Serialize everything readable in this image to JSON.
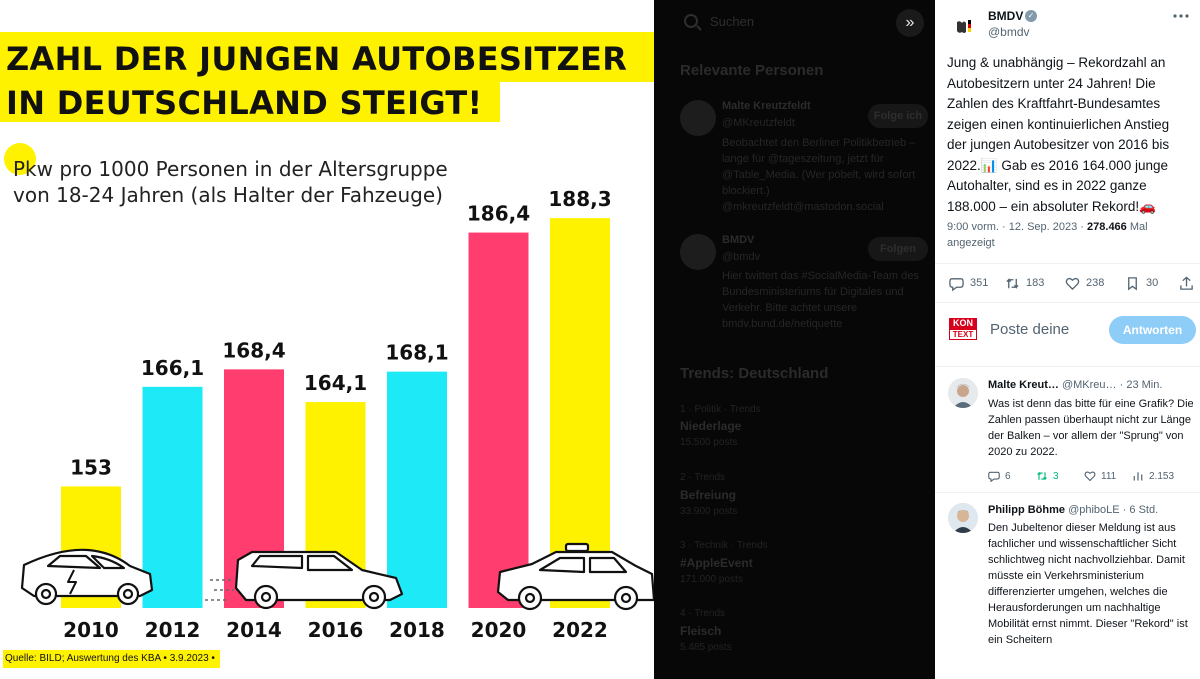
{
  "infographic": {
    "headline_line1": "ZAHL DER JUNGEN AUTOBESITZER",
    "headline_line2": "IN DEUTSCHLAND STEIGT!",
    "subtitle_line1": "Pkw pro 1000 Personen in der Altersgruppe",
    "subtitle_line2": "von 18-24 Jahren (als Halter der Fahzeuge)",
    "source": "Quelle: BILD; Auswertung des KBA • 3.9.2023 •",
    "colors": {
      "yellow": "#fff200",
      "cyan": "#1de9f7",
      "pink": "#ff3d6e"
    }
  },
  "chart_data": {
    "type": "bar",
    "categories": [
      "2010",
      "2012",
      "2014",
      "2016",
      "2018",
      "2020",
      "2022"
    ],
    "values": [
      153,
      166.1,
      168.4,
      164.1,
      168.1,
      186.4,
      188.3
    ],
    "value_labels": [
      "153",
      "166,1",
      "168,4",
      "164,1",
      "168,1",
      "186,4",
      "188,3"
    ],
    "bar_colors": [
      "#fff200",
      "#1de9f7",
      "#ff3d6e",
      "#fff200",
      "#1de9f7",
      "#ff3d6e",
      "#fff200"
    ],
    "title": "ZAHL DER JUNGEN AUTOBESITZER IN DEUTSCHLAND STEIGT!",
    "grid": false,
    "legend": "none"
  },
  "middle": {
    "search_placeholder": "Suchen",
    "expand_icon": "double-chevron-icon",
    "people_heading": "Relevante Personen",
    "people": [
      {
        "name": "Malte Kreutzfeldt",
        "handle": "@MKreutzfeldt",
        "follow": "Folge ich",
        "bio": "Beobachtet den Berliner Politikbetrieb – lange für @tageszeitung, jetzt für @Table_Media. (Wer pöbelt, wird sofort blockiert.) @mkreutzfeldt@mastodon.social"
      },
      {
        "name": "BMDV",
        "handle": "@bmdv",
        "follow": "Folgen",
        "bio": "Hier twittert das #SocialMedia-Team des Bundesministeriums für Digitales und Verkehr. Bitte achtet unsere bmdv.bund.de/netiquette"
      }
    ],
    "trends_heading": "Trends: Deutschland",
    "trends": [
      {
        "meta": "1 · Politik · Trends",
        "name": "Niederlage",
        "posts": "15.500 posts"
      },
      {
        "meta": "2 · Trends",
        "name": "Befreiung",
        "posts": "33.900 posts"
      },
      {
        "meta": "3 · Technik · Trends",
        "name": "#AppleEvent",
        "posts": "171.000 posts"
      },
      {
        "meta": "4 · Trends",
        "name": "Fleisch",
        "posts": "5.485 posts"
      }
    ]
  },
  "tweet": {
    "author": "BMDV",
    "handle": "@bmdv",
    "verified_icon": "verified-badge-icon",
    "body": "Jung & unabhängig – Rekordzahl an Autobesitzern unter 24 Jahren! Die Zahlen des Kraftfahrt-Bundesamtes zeigen einen kontinuierlichen Anstieg der jungen Autobesitzer von 2016 bis 2022.📊 Gab es 2016 164.000 junge Autohalter, sind es in 2022 ganze 188.000 – ein absoluter Rekord!🚗",
    "time": "9:00 vorm. · 12. Sep. 2023 · ",
    "views": "278.466",
    "views_label": "Mal angezeigt",
    "stats": {
      "replies": "351",
      "retweets": "183",
      "likes": "238",
      "bookmarks": "30"
    },
    "compose_avatar_text_top": "KON",
    "compose_avatar_text_bottom": "TEXT",
    "compose_placeholder": "Poste deine",
    "reply_button": "Antworten"
  },
  "replies": [
    {
      "name": "Malte Kreut…",
      "handle": "@MKreu…",
      "time": "· 23 Min.",
      "text": "Was ist denn das bitte für eine Grafik? Die Zahlen passen überhaupt nicht zur Länge der Balken – vor allem der \"Sprung\" von 2020 zu 2022.",
      "replies": "6",
      "retweets": "3",
      "likes": "111",
      "views": "2.153"
    },
    {
      "name": "Philipp Böhme",
      "handle": "@phiboLE",
      "time": "· 6 Std.",
      "text": "Den Jubeltenor dieser Meldung ist aus fachlicher und wissenschaftlicher Sicht schlichtweg nicht nachvollziehbar. Damit müsste ein Verkehrsministerium differenzierter umgehen, welches die Herausforderungen um nachhaltige Mobilität ernst nimmt. Dieser \"Rekord\" ist ein Scheitern"
    }
  ]
}
